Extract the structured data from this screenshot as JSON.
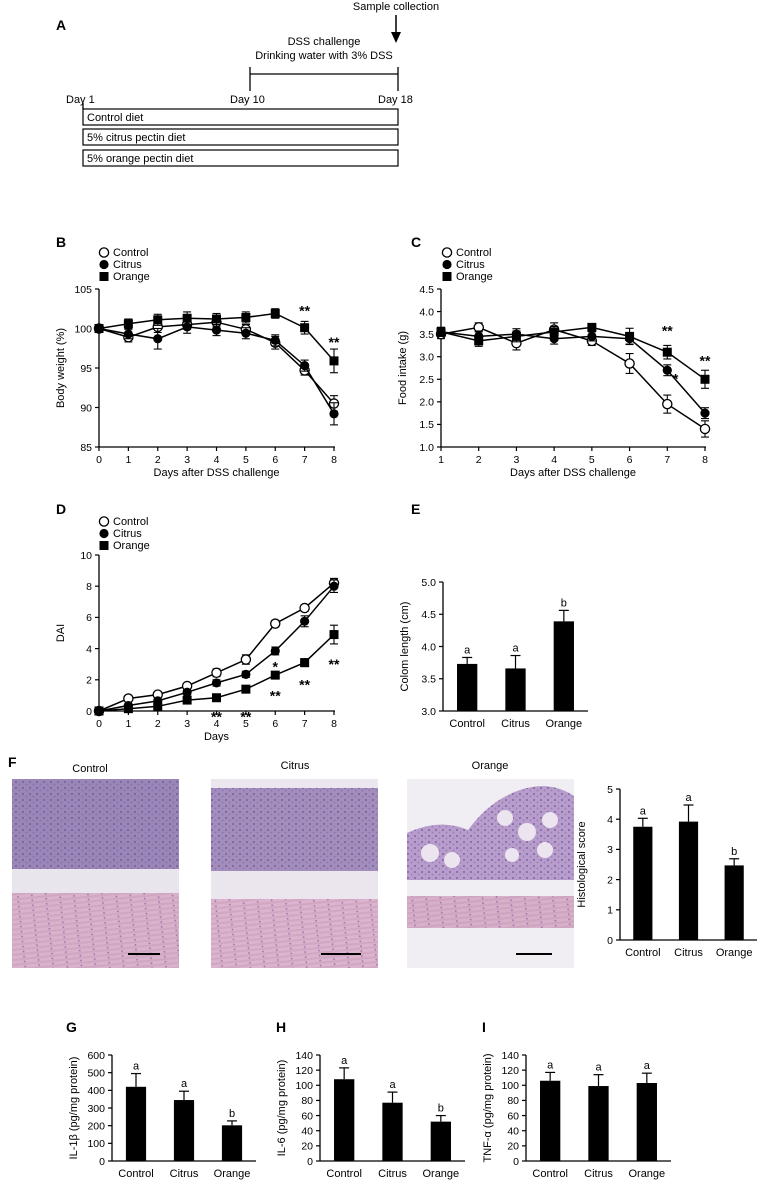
{
  "panel_labels": [
    "A",
    "B",
    "C",
    "D",
    "E",
    "F",
    "G",
    "H",
    "I"
  ],
  "timeline": {
    "sample": "Sample collection",
    "challenge1": "DSS challenge",
    "challenge2": "Drinking water with 3% DSS",
    "day1": "Day 1",
    "day10": "Day 10",
    "day18": "Day 18",
    "diets": [
      "Control diet",
      "5% citrus pectin diet",
      "5% orange pectin diet"
    ]
  },
  "histology": {
    "captions": [
      "Control",
      "Citrus",
      "Orange"
    ]
  },
  "chart_data": [
    {
      "id": "B",
      "type": "line",
      "title": "",
      "xlabel": "Days after DSS challenge",
      "ylabel": "Body weight (%)",
      "xlim": [
        0,
        8
      ],
      "ylim": [
        85,
        105
      ],
      "xticks": [
        0,
        1,
        2,
        3,
        4,
        5,
        6,
        7,
        8
      ],
      "yticks": [
        85,
        90,
        95,
        100,
        105
      ],
      "legend_position": "top-left",
      "series": [
        {
          "name": "Control",
          "marker": "open-circle",
          "x": [
            0,
            1,
            2,
            3,
            4,
            5,
            6,
            7,
            8
          ],
          "values": [
            100,
            98.9,
            100.2,
            100.5,
            100.8,
            99.9,
            98.2,
            94.7,
            90.5
          ],
          "errors": [
            0,
            0.6,
            0.7,
            0.6,
            0.6,
            0.6,
            0.8,
            0.6,
            1.0
          ]
        },
        {
          "name": "Citrus",
          "marker": "filled-circle",
          "x": [
            0,
            1,
            2,
            3,
            4,
            5,
            6,
            7,
            8
          ],
          "values": [
            100,
            99.3,
            98.7,
            100.2,
            99.8,
            99.4,
            98.5,
            95.3,
            89.2
          ],
          "errors": [
            0,
            0.6,
            1.3,
            0.8,
            0.7,
            0.7,
            0.7,
            0.7,
            1.4
          ]
        },
        {
          "name": "Orange",
          "marker": "filled-square",
          "x": [
            0,
            1,
            2,
            3,
            4,
            5,
            6,
            7,
            8
          ],
          "values": [
            100,
            100.6,
            101.1,
            101.3,
            101.2,
            101.4,
            101.9,
            100.1,
            95.9
          ],
          "errors": [
            0,
            0.6,
            0.7,
            0.8,
            0.7,
            0.7,
            0.6,
            0.8,
            1.5
          ]
        }
      ],
      "annotations": [
        {
          "text": "**",
          "x": 7,
          "y": 102.3
        },
        {
          "text": "**",
          "x": 8,
          "y": 98.3
        }
      ]
    },
    {
      "id": "C",
      "type": "line",
      "title": "",
      "xlabel": "Days after DSS challenge",
      "ylabel": "Food intake (g)",
      "xlim": [
        1,
        8
      ],
      "ylim": [
        1.0,
        4.5
      ],
      "xticks": [
        1,
        2,
        3,
        4,
        5,
        6,
        7,
        8
      ],
      "yticks": [
        "1.0",
        "1.5",
        "2.0",
        "2.5",
        "3.0",
        "3.5",
        "4.0",
        "4.5"
      ],
      "legend_position": "top-left",
      "series": [
        {
          "name": "Control",
          "marker": "open-circle",
          "x": [
            1,
            2,
            3,
            4,
            5,
            6,
            7,
            8
          ],
          "values": [
            3.5,
            3.65,
            3.3,
            3.6,
            3.35,
            2.85,
            1.95,
            1.4
          ],
          "errors": [
            0.1,
            0.1,
            0.15,
            0.15,
            0.1,
            0.22,
            0.2,
            0.18
          ]
        },
        {
          "name": "Citrus",
          "marker": "filled-circle",
          "x": [
            1,
            2,
            3,
            4,
            5,
            6,
            7,
            8
          ],
          "values": [
            3.55,
            3.45,
            3.5,
            3.4,
            3.45,
            3.4,
            2.7,
            1.75
          ],
          "errors": [
            0.1,
            0.12,
            0.12,
            0.12,
            0.1,
            0.12,
            0.12,
            0.12
          ]
        },
        {
          "name": "Orange",
          "marker": "filled-square",
          "x": [
            1,
            2,
            3,
            4,
            5,
            6,
            7,
            8
          ],
          "values": [
            3.55,
            3.35,
            3.45,
            3.55,
            3.65,
            3.45,
            3.1,
            2.5
          ],
          "errors": [
            0.1,
            0.12,
            0.12,
            0.12,
            0.08,
            0.18,
            0.15,
            0.2
          ]
        }
      ],
      "annotations": [
        {
          "text": "**",
          "x": 7,
          "y": 3.58
        },
        {
          "text": "*",
          "x": 7.22,
          "y": 2.52
        },
        {
          "text": "**",
          "x": 8,
          "y": 2.92
        }
      ]
    },
    {
      "id": "D",
      "type": "line",
      "title": "",
      "xlabel": "Days",
      "ylabel": "DAI",
      "xlim": [
        0,
        8
      ],
      "ylim": [
        0,
        10
      ],
      "xticks": [
        0,
        1,
        2,
        3,
        4,
        5,
        6,
        7,
        8
      ],
      "yticks": [
        0,
        2,
        4,
        6,
        8,
        10
      ],
      "legend_position": "top-left",
      "series": [
        {
          "name": "Control",
          "marker": "open-circle",
          "x": [
            0,
            1,
            2,
            3,
            4,
            5,
            6,
            7,
            8
          ],
          "values": [
            0,
            0.8,
            1.05,
            1.6,
            2.45,
            3.3,
            5.6,
            6.6,
            8.2
          ],
          "errors": [
            0,
            0.1,
            0.15,
            0.15,
            0.25,
            0.3,
            0.2,
            0.2,
            0.3
          ]
        },
        {
          "name": "Citrus",
          "marker": "filled-circle",
          "x": [
            0,
            1,
            2,
            3,
            4,
            5,
            6,
            7,
            8
          ],
          "values": [
            0,
            0.35,
            0.65,
            1.2,
            1.8,
            2.35,
            3.85,
            5.75,
            8.0
          ],
          "errors": [
            0,
            0.1,
            0.1,
            0.15,
            0.2,
            0.2,
            0.25,
            0.35,
            0.4
          ]
        },
        {
          "name": "Orange",
          "marker": "filled-square",
          "x": [
            0,
            1,
            2,
            3,
            4,
            5,
            6,
            7,
            8
          ],
          "values": [
            0,
            0.15,
            0.3,
            0.7,
            0.85,
            1.4,
            2.3,
            3.1,
            4.9
          ],
          "errors": [
            0,
            0.05,
            0.1,
            0.1,
            0.15,
            0.15,
            0.2,
            0.25,
            0.6
          ]
        }
      ],
      "annotations": [
        {
          "text": "**",
          "x": 4,
          "y": -0.35
        },
        {
          "text": "**",
          "x": 5,
          "y": -0.35
        },
        {
          "text": "*",
          "x": 6,
          "y": 2.85
        },
        {
          "text": "**",
          "x": 6,
          "y": 1.0
        },
        {
          "text": "**",
          "x": 7,
          "y": 1.7
        },
        {
          "text": "**",
          "x": 8,
          "y": 3.0
        }
      ]
    },
    {
      "id": "E",
      "type": "bar",
      "title": "",
      "xlabel": "",
      "ylabel": "Colom length (cm)",
      "categories": [
        "Control",
        "Citrus",
        "Orange"
      ],
      "values": [
        3.73,
        3.66,
        4.39
      ],
      "errors": [
        0.1,
        0.2,
        0.17
      ],
      "letters": [
        "a",
        "a",
        "b"
      ],
      "ylim": [
        3.0,
        5.0
      ],
      "yticks": [
        "3.0",
        "3.5",
        "4.0",
        "4.5",
        "5.0"
      ]
    },
    {
      "id": "F",
      "type": "bar",
      "title": "",
      "xlabel": "",
      "ylabel": "Histological score",
      "categories": [
        "Control",
        "Citrus",
        "Orange"
      ],
      "values": [
        3.75,
        3.92,
        2.47
      ],
      "errors": [
        0.28,
        0.55,
        0.22
      ],
      "letters": [
        "a",
        "a",
        "b"
      ],
      "ylim": [
        0,
        5
      ],
      "yticks": [
        0,
        1,
        2,
        3,
        4,
        5
      ]
    },
    {
      "id": "G",
      "type": "bar",
      "title": "",
      "xlabel": "",
      "ylabel": "IL-1β (pg/mg protein)",
      "categories": [
        "Control",
        "Citrus",
        "Orange"
      ],
      "values": [
        420,
        345,
        202
      ],
      "errors": [
        75,
        50,
        25
      ],
      "letters": [
        "a",
        "a",
        "b"
      ],
      "ylim": [
        0,
        600
      ],
      "yticks": [
        0,
        100,
        200,
        300,
        400,
        500,
        600
      ]
    },
    {
      "id": "H",
      "type": "bar",
      "title": "",
      "xlabel": "",
      "ylabel": "IL-6 (pg/mg protein)",
      "categories": [
        "Control",
        "Citrus",
        "Orange"
      ],
      "values": [
        108,
        77,
        52
      ],
      "errors": [
        15,
        14,
        8
      ],
      "letters": [
        "a",
        "a",
        "b"
      ],
      "ylim": [
        0,
        140
      ],
      "yticks": [
        0,
        20,
        40,
        60,
        80,
        100,
        120,
        140
      ]
    },
    {
      "id": "I",
      "type": "bar",
      "title": "",
      "xlabel": "",
      "ylabel": "TNF-α (pg/mg protein)",
      "categories": [
        "Control",
        "Citrus",
        "Orange"
      ],
      "values": [
        106,
        99,
        103
      ],
      "errors": [
        11,
        15,
        13
      ],
      "letters": [
        "a",
        "a",
        "a"
      ],
      "ylim": [
        0,
        140
      ],
      "yticks": [
        0,
        20,
        40,
        60,
        80,
        100,
        120,
        140
      ]
    }
  ]
}
